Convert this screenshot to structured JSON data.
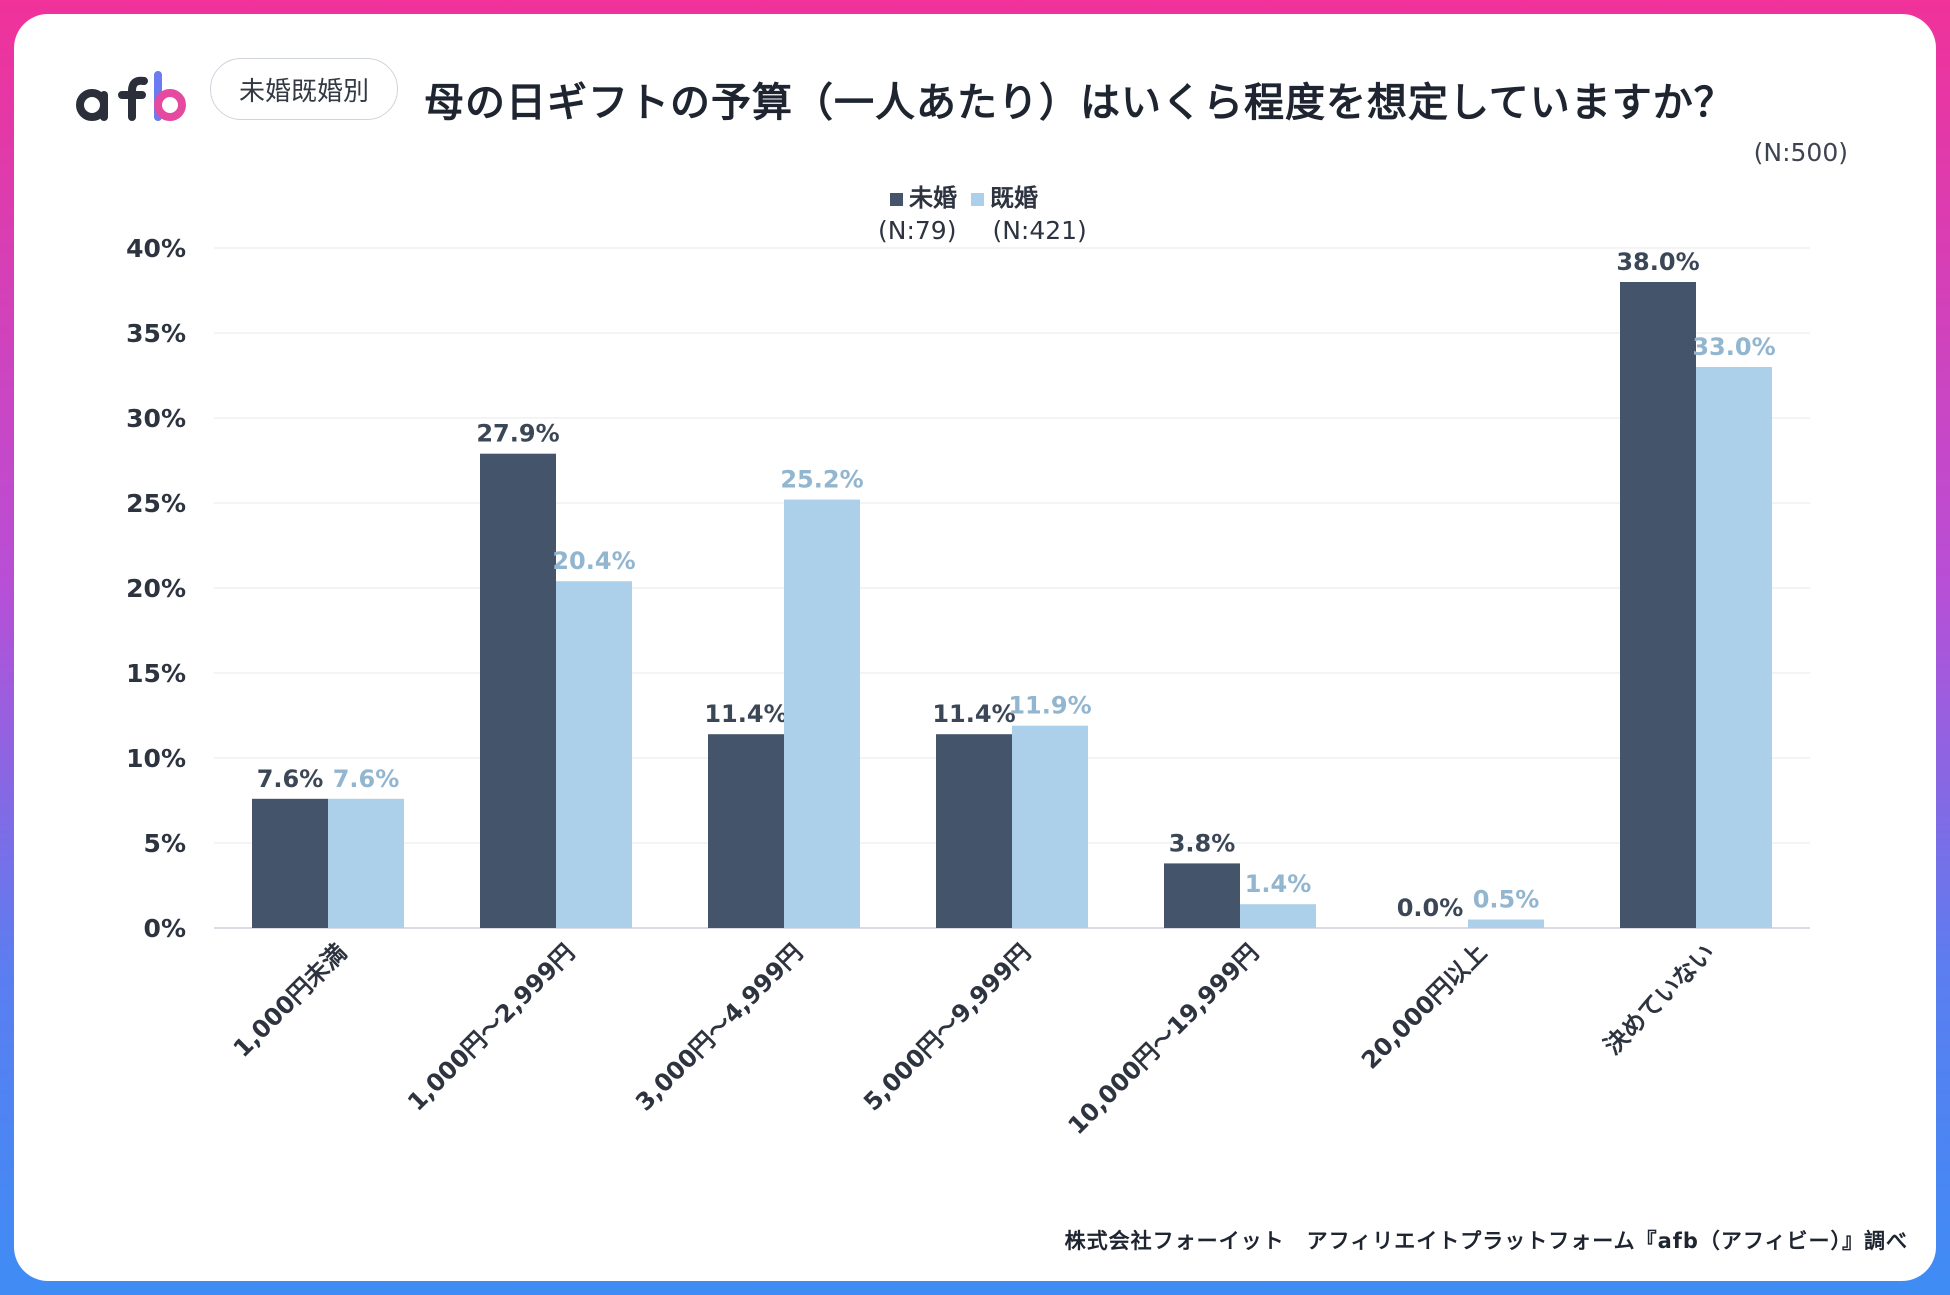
{
  "header": {
    "logo_text": "afb",
    "badge": "未婚既婚別",
    "title": "母の日ギフトの予算（一人あたり）はいくら程度を想定していますか？",
    "n_total": "(N:500)"
  },
  "legend": {
    "items": [
      {
        "label": "未婚",
        "n": "(N:79)",
        "color": "#44546a"
      },
      {
        "label": "既婚",
        "n": "(N:421)",
        "color": "#acd0e9"
      }
    ]
  },
  "footer": "株式会社フォーイット　アフィリエイトプラットフォーム『afb（アフィビー）』調べ",
  "chart_data": {
    "type": "bar",
    "title": "母の日ギフトの予算（一人あたり）はいくら程度を想定していますか？",
    "categories": [
      "1,000円未満",
      "1,000円～2,999円",
      "3,000円～4,999円",
      "5,000円～9,999円",
      "10,000円～19,999円",
      "20,000円以上",
      "決めていない"
    ],
    "series": [
      {
        "name": "未婚",
        "values": [
          7.6,
          27.9,
          11.4,
          11.4,
          3.8,
          0.0,
          38.0
        ],
        "labels": [
          "7.6%",
          "27.9%",
          "11.4%",
          "11.4%",
          "3.8%",
          "0.0%",
          "38.0%"
        ],
        "color": "#44546a",
        "label_color": "#3b4656"
      },
      {
        "name": "既婚",
        "values": [
          7.6,
          20.4,
          25.2,
          11.9,
          1.4,
          0.5,
          33.0
        ],
        "labels": [
          "7.6%",
          "20.4%",
          "25.2%",
          "11.9%",
          "1.4%",
          "0.5%",
          "33.0%"
        ],
        "color": "#acd0e9",
        "label_color": "#92b6cf"
      }
    ],
    "yticks": [
      "0%",
      "5%",
      "10%",
      "15%",
      "20%",
      "25%",
      "30%",
      "35%",
      "40%"
    ],
    "ytick_values": [
      0,
      5,
      10,
      15,
      20,
      25,
      30,
      35,
      40
    ],
    "ylim": [
      0,
      40
    ],
    "grid": true,
    "legend_position": "top-center"
  }
}
